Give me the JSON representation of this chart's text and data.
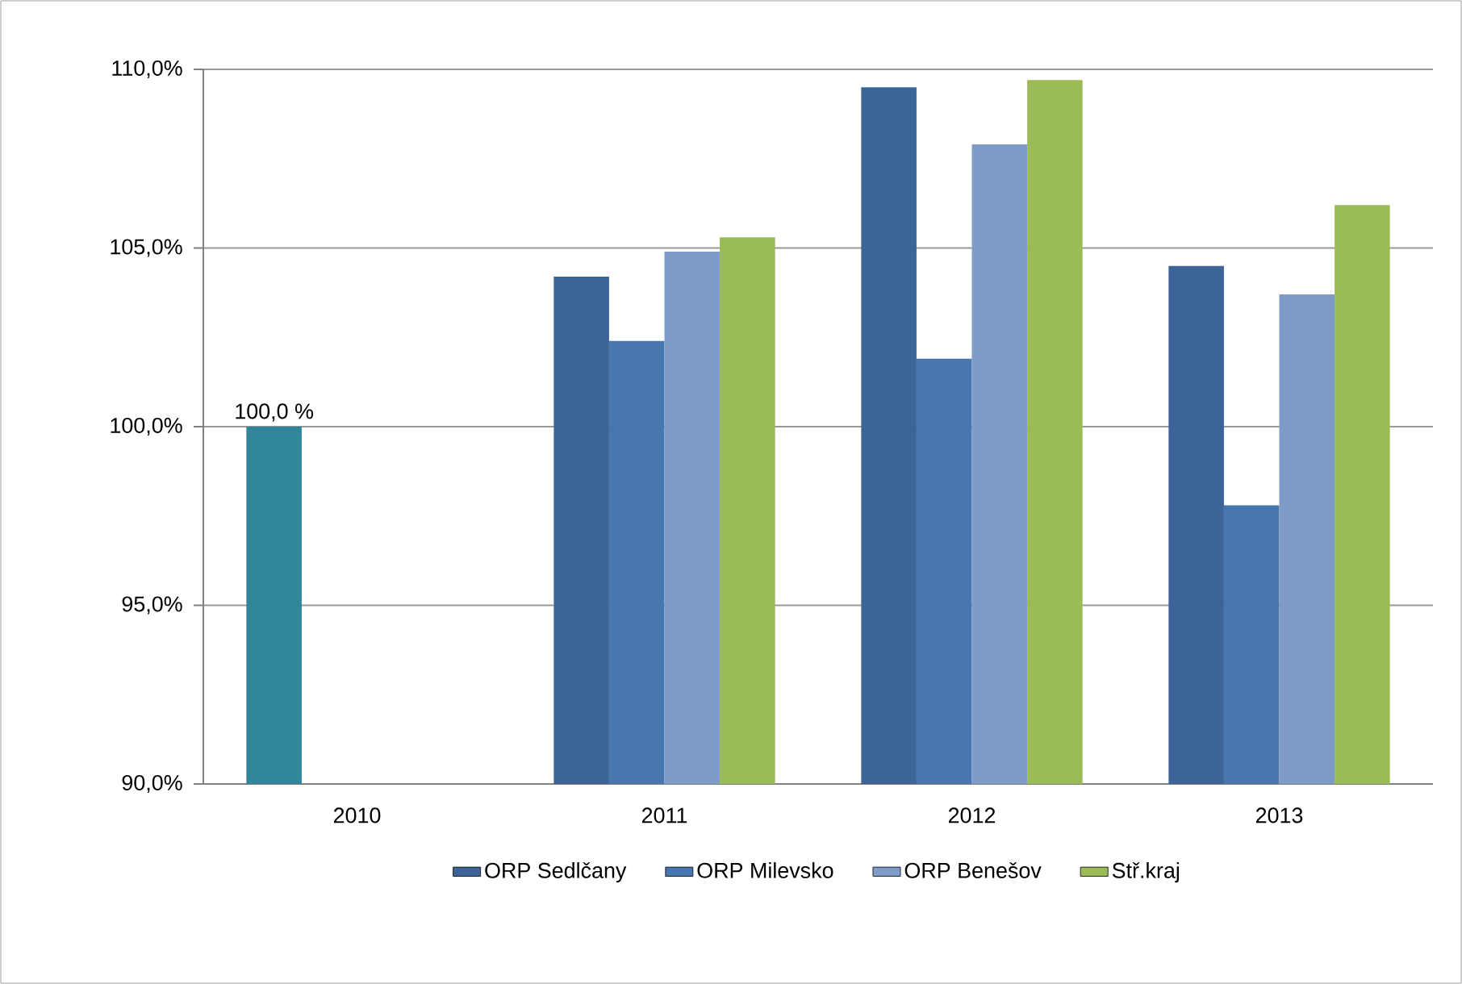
{
  "chart_data": {
    "type": "bar",
    "categories": [
      "2010",
      "2011",
      "2012",
      "2013"
    ],
    "series": [
      {
        "name": "ORP Sedlčany",
        "color": "#3c6496",
        "colors": [
          "#31869c",
          "#3c6496",
          "#3c6496",
          "#3c6496"
        ],
        "values": [
          100.0,
          104.2,
          109.5,
          104.5
        ],
        "value_labels": [
          "100,0 %",
          null,
          null,
          null
        ]
      },
      {
        "name": "ORP Milevsko",
        "color": "#4877b0",
        "values": [
          null,
          102.4,
          101.9,
          97.8
        ]
      },
      {
        "name": "ORP Benešov",
        "color": "#7f9cc8",
        "values": [
          null,
          104.9,
          107.9,
          103.7
        ]
      },
      {
        "name": "Stř.kraj",
        "color": "#9bbb59",
        "values": [
          null,
          105.3,
          109.7,
          106.2
        ]
      }
    ],
    "ylim": [
      90,
      110
    ],
    "yticks": [
      {
        "value": 90,
        "label": "90,0%"
      },
      {
        "value": 95,
        "label": "95,0%"
      },
      {
        "value": 100,
        "label": "100,0%"
      },
      {
        "value": 105,
        "label": "105,0%"
      },
      {
        "value": 110,
        "label": "110,0%"
      }
    ],
    "grid": "y",
    "legend": "bottom"
  }
}
